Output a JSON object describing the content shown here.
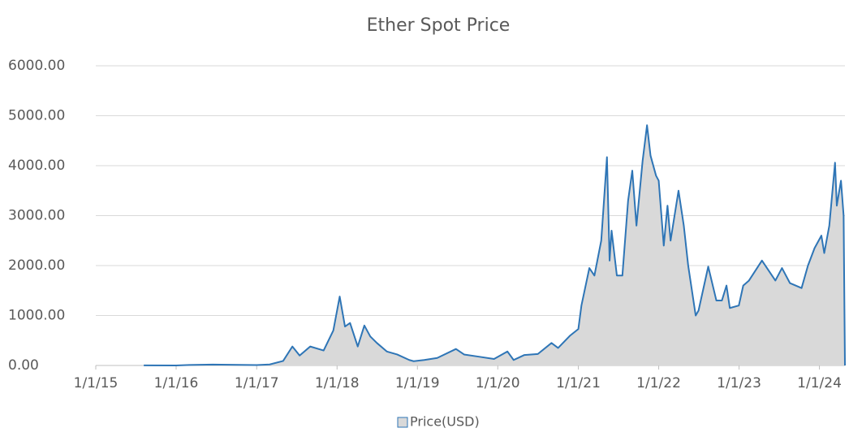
{
  "chart_data": {
    "type": "area",
    "title": "Ether Spot Price",
    "series": [
      {
        "name": "Price(USD)",
        "color": "#2e75b6",
        "fill": "#d9d9d9",
        "x": [
          "8/7/15",
          "1/1/16",
          "3/1/16",
          "6/15/16",
          "1/1/17",
          "3/1/17",
          "5/1/17",
          "6/12/17",
          "7/15/17",
          "9/1/17",
          "11/1/17",
          "12/15/17",
          "1/13/18",
          "2/6/18",
          "3/1/18",
          "4/5/18",
          "5/5/18",
          "6/1/18",
          "7/1/18",
          "8/15/18",
          "10/1/18",
          "11/25/18",
          "12/15/18",
          "2/1/19",
          "4/1/19",
          "6/25/19",
          "8/1/19",
          "10/1/19",
          "12/15/19",
          "2/14/20",
          "3/13/20",
          "5/1/20",
          "7/1/20",
          "9/1/20",
          "10/1/20",
          "11/25/20",
          "1/1/21",
          "1/15/21",
          "2/20/21",
          "3/15/21",
          "4/15/21",
          "5/11/21",
          "5/23/21",
          "6/1/21",
          "6/25/21",
          "7/20/21",
          "8/15/21",
          "9/3/21",
          "9/22/21",
          "10/20/21",
          "11/9/21",
          "11/25/21",
          "12/20/21",
          "1/1/22",
          "1/24/22",
          "2/10/22",
          "2/24/22",
          "4/1/22",
          "4/25/22",
          "5/15/22",
          "6/18/22",
          "7/1/22",
          "8/14/22",
          "9/20/22",
          "10/15/22",
          "11/5/22",
          "11/20/22",
          "12/31/22",
          "1/20/23",
          "2/15/23",
          "4/15/23",
          "6/15/23",
          "7/15/23",
          "8/20/23",
          "10/12/23",
          "11/10/23",
          "12/10/23",
          "1/10/24",
          "1/23/24",
          "2/15/24",
          "3/12/24",
          "3/20/24",
          "4/8/24",
          "4/20/24",
          "4/26/24"
        ],
        "values": [
          2.8,
          1,
          10,
          18,
          8,
          20,
          90,
          380,
          200,
          380,
          300,
          700,
          1380,
          780,
          850,
          380,
          800,
          580,
          450,
          280,
          220,
          110,
          85,
          110,
          150,
          330,
          220,
          180,
          130,
          280,
          110,
          210,
          230,
          450,
          350,
          600,
          730,
          1200,
          1950,
          1800,
          2500,
          4170,
          2100,
          2700,
          1800,
          1800,
          3300,
          3900,
          2800,
          4100,
          4810,
          4200,
          3800,
          3700,
          2400,
          3200,
          2500,
          3500,
          2800,
          2000,
          1000,
          1100,
          1980,
          1300,
          1300,
          1600,
          1150,
          1200,
          1600,
          1700,
          2100,
          1700,
          1950,
          1650,
          1550,
          2000,
          2350,
          2600,
          2250,
          2800,
          4060,
          3200,
          3700,
          3000,
          0
        ]
      }
    ],
    "xlim": [
      "1/1/15",
      "4/26/24"
    ],
    "xticks": [
      "1/1/15",
      "1/1/16",
      "1/1/17",
      "1/1/18",
      "1/1/19",
      "1/1/20",
      "1/1/21",
      "1/1/22",
      "1/1/23",
      "1/1/24"
    ],
    "ylim": [
      0,
      6000
    ],
    "yticks": [
      {
        "value": 0,
        "label": "0.00"
      },
      {
        "value": 1000,
        "label": "1000.00"
      },
      {
        "value": 2000,
        "label": "2000.00"
      },
      {
        "value": 3000,
        "label": "3000.00"
      },
      {
        "value": 4000,
        "label": "4000.00"
      },
      {
        "value": 5000,
        "label": "5000.00"
      },
      {
        "value": 6000,
        "label": "6000.00"
      }
    ],
    "grid": true,
    "legend": "bottom"
  }
}
